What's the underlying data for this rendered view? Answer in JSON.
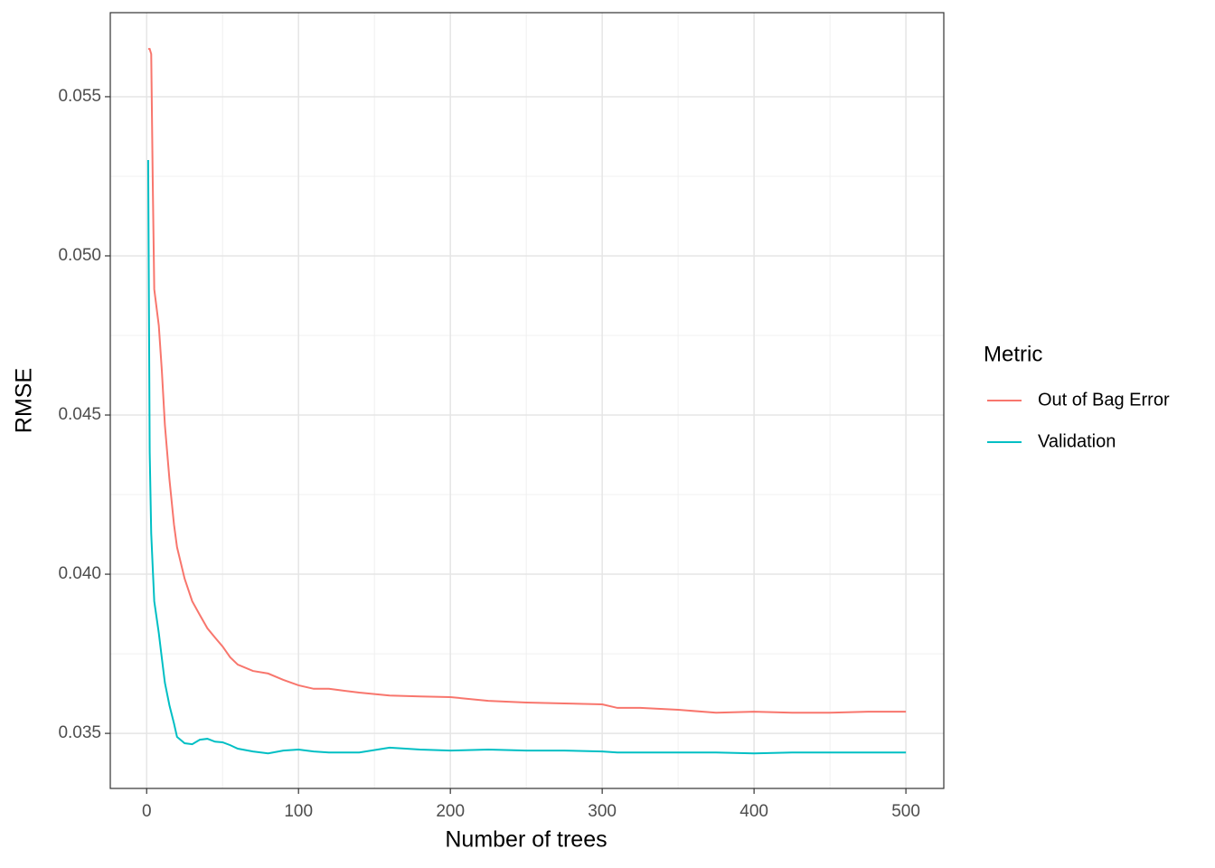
{
  "chart_data": {
    "type": "line",
    "x_label": "Number of trees",
    "y_label": "RMSE",
    "x": [
      1,
      2,
      3,
      4,
      5,
      8,
      10,
      12,
      15,
      18,
      20,
      25,
      30,
      35,
      40,
      45,
      50,
      55,
      60,
      70,
      80,
      90,
      100,
      110,
      120,
      140,
      160,
      180,
      200,
      225,
      250,
      275,
      300,
      310,
      325,
      350,
      375,
      400,
      425,
      450,
      475,
      500
    ],
    "series": [
      {
        "name": "Out of Bag Error",
        "color": "#F8766D",
        "values": [
          0.0565,
          0.0565,
          0.05634,
          0.05236,
          0.04895,
          0.04781,
          0.04639,
          0.04469,
          0.04298,
          0.04156,
          0.04085,
          0.03986,
          0.03915,
          0.03872,
          0.0383,
          0.03801,
          0.03773,
          0.03739,
          0.03716,
          0.03696,
          0.03688,
          0.03668,
          0.03651,
          0.0364,
          0.0364,
          0.03628,
          0.03619,
          0.03616,
          0.03614,
          0.03602,
          0.03597,
          0.03594,
          0.03591,
          0.0358,
          0.0358,
          0.03574,
          0.03565,
          0.03568,
          0.03565,
          0.03565,
          0.03568,
          0.03568
        ]
      },
      {
        "name": "Validation",
        "color": "#00BFC4",
        "values": [
          0.05301,
          0.04384,
          0.04128,
          0.0402,
          0.03915,
          0.03815,
          0.03736,
          0.03659,
          0.03588,
          0.03531,
          0.03489,
          0.03469,
          0.03466,
          0.0348,
          0.03483,
          0.03474,
          0.03472,
          0.03463,
          0.03452,
          0.03443,
          0.03437,
          0.03446,
          0.03449,
          0.03443,
          0.0344,
          0.0344,
          0.03455,
          0.03449,
          0.03446,
          0.03449,
          0.03446,
          0.03446,
          0.03443,
          0.0344,
          0.0344,
          0.0344,
          0.0344,
          0.03437,
          0.0344,
          0.0344,
          0.0344,
          0.0344
        ]
      }
    ],
    "legend_title": "Metric",
    "legend": "right",
    "xlim": [
      -23.95,
      524.95
    ],
    "xticks": [
      0,
      100,
      200,
      300,
      400,
      500
    ],
    "x_minor_grid": [
      50,
      150,
      250,
      350,
      450
    ],
    "ylim": [
      0.03327,
      0.05764
    ],
    "yticks": [
      0.035,
      {
        "value": 0.04,
        "label": "0.040"
      },
      0.045,
      {
        "value": 0.05,
        "label": "0.050"
      },
      0.055
    ],
    "y_minor_grid": [
      0.0375,
      0.0425,
      0.0475,
      0.0525
    ],
    "grid": true
  }
}
